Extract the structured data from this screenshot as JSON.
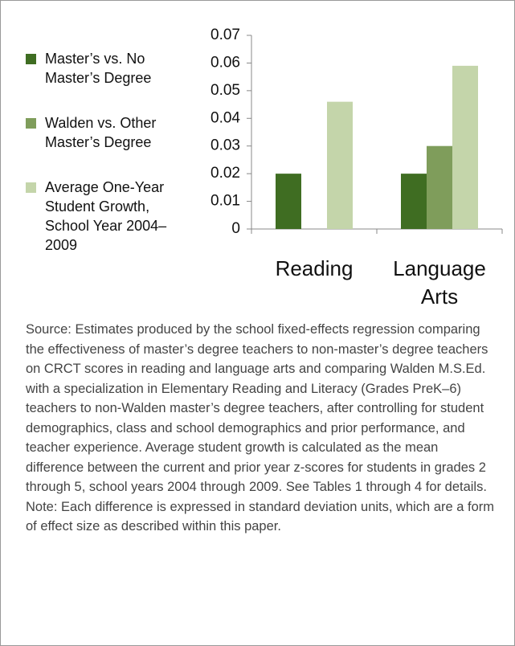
{
  "chart_data": {
    "type": "bar",
    "categories": [
      "Reading",
      "Language Arts"
    ],
    "series": [
      {
        "name": "Master’s vs. No Master’s Degree",
        "color": "#3f6d22",
        "values": [
          0.02,
          0.02
        ]
      },
      {
        "name": "Walden vs. Other Master’s Degree",
        "color": "#7f9d5b",
        "values": [
          null,
          0.03
        ]
      },
      {
        "name": "Average One-Year Student Growth, School Year 2004–2009",
        "color": "#c4d5aa",
        "values": [
          0.046,
          0.059
        ]
      }
    ],
    "ylim": [
      0,
      0.07
    ],
    "yticks": [
      0,
      0.01,
      0.02,
      0.03,
      0.04,
      0.05,
      0.06,
      0.07
    ],
    "grid": false,
    "legend": "left",
    "source": "Source: Estimates produced by the school fixed-effects regression comparing the effectiveness of master’s degree teachers to non-master’s degree teachers on CRCT scores in reading and language arts and comparing Walden M.S.Ed. with a specialization in Elementary Reading and Literacy (Grades PreK–6) teachers to non-Walden master’s degree teachers, after controlling for student demographics, class and school demographics and prior performance, and teacher experience. Average student growth is calculated as the mean difference between the current and prior year z-scores for students in grades 2 through 5, school years 2004 through 2009. See Tables 1 through 4 for details. Note: Each difference is expressed in standard deviation units, which are a form of effect size as described within this paper."
  }
}
